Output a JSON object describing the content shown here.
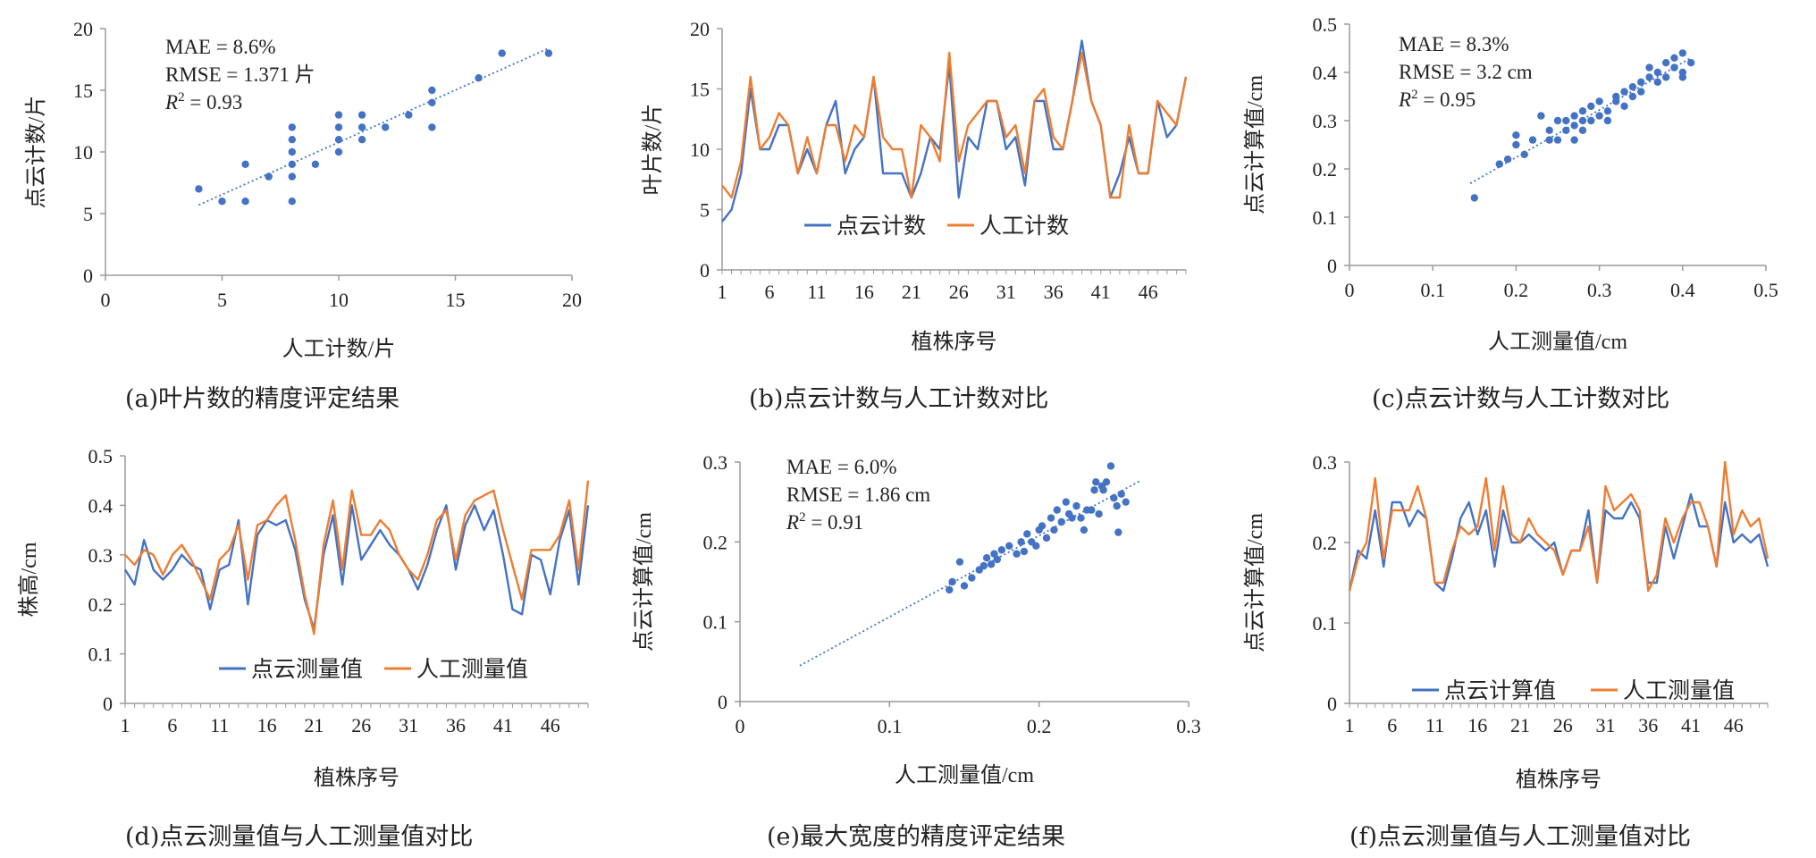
{
  "colors": {
    "blue": "#4472C4",
    "orange": "#ED7D31",
    "axis": "#888888",
    "text": "#222222"
  },
  "chart_data": [
    {
      "id": "a",
      "type": "scatter",
      "caption": "(a)叶片数的精度评定结果",
      "xlabel": "人工计数/片",
      "ylabel": "点云计数/片",
      "xlim": [
        0,
        20
      ],
      "ylim": [
        0,
        20
      ],
      "xticks": [
        0,
        5,
        10,
        15,
        20
      ],
      "yticks": [
        0,
        5,
        10,
        15,
        20
      ],
      "stats": [
        {
          "label": "MAE",
          "value": "8.6%"
        },
        {
          "label": "RMSE",
          "value": "1.371 片"
        },
        {
          "label": "R2",
          "value": "0.93"
        }
      ],
      "points": [
        [
          4,
          7
        ],
        [
          5,
          6
        ],
        [
          6,
          6
        ],
        [
          6,
          9
        ],
        [
          7,
          8
        ],
        [
          8,
          6
        ],
        [
          8,
          8
        ],
        [
          8,
          9
        ],
        [
          8,
          10
        ],
        [
          8,
          11
        ],
        [
          8,
          12
        ],
        [
          9,
          9
        ],
        [
          10,
          10
        ],
        [
          10,
          11
        ],
        [
          10,
          12
        ],
        [
          10,
          13
        ],
        [
          11,
          11
        ],
        [
          11,
          12
        ],
        [
          11,
          13
        ],
        [
          12,
          12
        ],
        [
          13,
          13
        ],
        [
          14,
          12
        ],
        [
          14,
          14
        ],
        [
          14,
          15
        ],
        [
          16,
          16
        ],
        [
          17,
          18
        ],
        [
          19,
          18
        ]
      ],
      "trendline": [
        [
          4,
          5.7
        ],
        [
          19,
          18.4
        ]
      ]
    },
    {
      "id": "b",
      "type": "line",
      "caption": "(b)点云计数与人工计数对比",
      "xlabel": "植株序号",
      "ylabel": "叶片数/片",
      "ylim": [
        0,
        20
      ],
      "yticks": [
        0,
        5,
        10,
        15,
        20
      ],
      "x_tick_labels": [
        "1",
        "6",
        "11",
        "16",
        "21",
        "26",
        "31",
        "36",
        "41",
        "46"
      ],
      "x_count": 50,
      "series": [
        {
          "name": "点云计数",
          "color": "#4472C4",
          "values": [
            4,
            5,
            8,
            15,
            10,
            10,
            12,
            12,
            8,
            10,
            8,
            12,
            14,
            8,
            10,
            11,
            16,
            8,
            8,
            8,
            6,
            8,
            11,
            10,
            17,
            6,
            11,
            10,
            14,
            14,
            10,
            11,
            7,
            14,
            14,
            10,
            10,
            14,
            19,
            14,
            12,
            6,
            8,
            11,
            8,
            8,
            14,
            11,
            12,
            16
          ]
        },
        {
          "name": "人工计数",
          "color": "#ED7D31",
          "values": [
            7,
            6,
            9,
            16,
            10,
            11,
            13,
            12,
            8,
            11,
            8,
            12,
            12,
            9,
            12,
            11,
            16,
            11,
            10,
            10,
            6,
            12,
            11,
            9,
            18,
            9,
            12,
            13,
            14,
            14,
            11,
            12,
            8,
            14,
            15,
            11,
            10,
            14,
            18,
            14,
            12,
            6,
            6,
            12,
            8,
            8,
            14,
            13,
            12,
            16
          ]
        }
      ]
    },
    {
      "id": "c",
      "type": "scatter",
      "caption": "(c)点云计数与人工计数对比",
      "xlabel": "人工测量值/cm",
      "ylabel": "点云计算值/cm",
      "xlim": [
        0,
        0.5
      ],
      "ylim": [
        0,
        0.5
      ],
      "xticks": [
        "0",
        "0.1",
        "0.2",
        "0.3",
        "0.4",
        "0.5"
      ],
      "yticks": [
        "0",
        "0.1",
        "0.2",
        "0.3",
        "0.4",
        "0.5"
      ],
      "stats": [
        {
          "label": "MAE",
          "value": "8.3%"
        },
        {
          "label": "RMSE",
          "value": "3.2 cm"
        },
        {
          "label": "R2",
          "value": "0.95"
        }
      ],
      "points": [
        [
          0.15,
          0.14
        ],
        [
          0.18,
          0.21
        ],
        [
          0.19,
          0.22
        ],
        [
          0.2,
          0.27
        ],
        [
          0.2,
          0.25
        ],
        [
          0.21,
          0.23
        ],
        [
          0.22,
          0.26
        ],
        [
          0.23,
          0.31
        ],
        [
          0.24,
          0.26
        ],
        [
          0.24,
          0.28
        ],
        [
          0.25,
          0.26
        ],
        [
          0.25,
          0.3
        ],
        [
          0.26,
          0.28
        ],
        [
          0.26,
          0.3
        ],
        [
          0.27,
          0.29
        ],
        [
          0.27,
          0.31
        ],
        [
          0.27,
          0.26
        ],
        [
          0.28,
          0.3
        ],
        [
          0.28,
          0.28
        ],
        [
          0.28,
          0.32
        ],
        [
          0.29,
          0.3
        ],
        [
          0.29,
          0.33
        ],
        [
          0.3,
          0.31
        ],
        [
          0.3,
          0.34
        ],
        [
          0.31,
          0.3
        ],
        [
          0.31,
          0.32
        ],
        [
          0.32,
          0.34
        ],
        [
          0.32,
          0.35
        ],
        [
          0.33,
          0.33
        ],
        [
          0.33,
          0.36
        ],
        [
          0.34,
          0.35
        ],
        [
          0.34,
          0.37
        ],
        [
          0.35,
          0.38
        ],
        [
          0.35,
          0.36
        ],
        [
          0.36,
          0.39
        ],
        [
          0.36,
          0.41
        ],
        [
          0.37,
          0.4
        ],
        [
          0.37,
          0.38
        ],
        [
          0.38,
          0.39
        ],
        [
          0.38,
          0.42
        ],
        [
          0.39,
          0.41
        ],
        [
          0.39,
          0.43
        ],
        [
          0.4,
          0.4
        ],
        [
          0.4,
          0.44
        ],
        [
          0.41,
          0.42
        ],
        [
          0.4,
          0.39
        ]
      ],
      "trendline": [
        [
          0.145,
          0.17
        ],
        [
          0.41,
          0.43
        ]
      ]
    },
    {
      "id": "d",
      "type": "line",
      "caption": "(d)点云测量值与人工测量值对比",
      "xlabel": "植株序号",
      "ylabel": "株高/cm",
      "ylim": [
        0,
        0.5
      ],
      "yticks": [
        "0",
        "0.1",
        "0.2",
        "0.3",
        "0.4",
        "0.5"
      ],
      "x_tick_labels": [
        "1",
        "6",
        "11",
        "16",
        "21",
        "26",
        "31",
        "36",
        "41",
        "46"
      ],
      "x_count": 50,
      "series": [
        {
          "name": "点云测量值",
          "color": "#4472C4",
          "values": [
            0.27,
            0.24,
            0.33,
            0.27,
            0.25,
            0.27,
            0.3,
            0.28,
            0.27,
            0.19,
            0.27,
            0.28,
            0.37,
            0.2,
            0.34,
            0.37,
            0.36,
            0.37,
            0.31,
            0.21,
            0.15,
            0.3,
            0.38,
            0.24,
            0.4,
            0.29,
            0.32,
            0.35,
            0.32,
            0.3,
            0.27,
            0.23,
            0.28,
            0.35,
            0.4,
            0.27,
            0.36,
            0.4,
            0.35,
            0.39,
            0.3,
            0.19,
            0.18,
            0.3,
            0.29,
            0.22,
            0.33,
            0.39,
            0.24,
            0.4
          ]
        },
        {
          "name": "人工测量值",
          "color": "#ED7D31",
          "values": [
            0.3,
            0.28,
            0.31,
            0.3,
            0.26,
            0.3,
            0.32,
            0.29,
            0.25,
            0.21,
            0.29,
            0.31,
            0.36,
            0.25,
            0.36,
            0.37,
            0.4,
            0.42,
            0.33,
            0.22,
            0.14,
            0.32,
            0.41,
            0.27,
            0.43,
            0.34,
            0.34,
            0.37,
            0.35,
            0.3,
            0.27,
            0.25,
            0.3,
            0.37,
            0.39,
            0.29,
            0.38,
            0.41,
            0.42,
            0.43,
            0.35,
            0.28,
            0.21,
            0.31,
            0.31,
            0.31,
            0.34,
            0.41,
            0.27,
            0.45
          ]
        }
      ]
    },
    {
      "id": "e",
      "type": "scatter",
      "caption": "(e)最大宽度的精度评定结果",
      "xlabel": "人工测量值/cm",
      "ylabel": "点云计算值/cm",
      "xlim": [
        0,
        0.3
      ],
      "ylim": [
        0,
        0.3
      ],
      "xticks": [
        "0",
        "0.1",
        "0.2",
        "0.3"
      ],
      "yticks": [
        "0",
        "0.1",
        "0.2",
        "0.3"
      ],
      "stats": [
        {
          "label": "MAE",
          "value": "6.0%"
        },
        {
          "label": "RMSE",
          "value": "1.86 cm"
        },
        {
          "label": "R2",
          "value": "0.91"
        }
      ],
      "points": [
        [
          0.14,
          0.14
        ],
        [
          0.142,
          0.15
        ],
        [
          0.147,
          0.175
        ],
        [
          0.15,
          0.145
        ],
        [
          0.155,
          0.155
        ],
        [
          0.16,
          0.165
        ],
        [
          0.163,
          0.17
        ],
        [
          0.165,
          0.18
        ],
        [
          0.168,
          0.172
        ],
        [
          0.17,
          0.185
        ],
        [
          0.172,
          0.178
        ],
        [
          0.175,
          0.19
        ],
        [
          0.18,
          0.195
        ],
        [
          0.185,
          0.185
        ],
        [
          0.188,
          0.2
        ],
        [
          0.19,
          0.188
        ],
        [
          0.192,
          0.21
        ],
        [
          0.195,
          0.2
        ],
        [
          0.198,
          0.195
        ],
        [
          0.2,
          0.215
        ],
        [
          0.202,
          0.22
        ],
        [
          0.205,
          0.205
        ],
        [
          0.208,
          0.23
        ],
        [
          0.21,
          0.215
        ],
        [
          0.212,
          0.24
        ],
        [
          0.215,
          0.225
        ],
        [
          0.218,
          0.25
        ],
        [
          0.22,
          0.235
        ],
        [
          0.222,
          0.23
        ],
        [
          0.225,
          0.245
        ],
        [
          0.228,
          0.23
        ],
        [
          0.23,
          0.215
        ],
        [
          0.232,
          0.24
        ],
        [
          0.235,
          0.24
        ],
        [
          0.237,
          0.265
        ],
        [
          0.238,
          0.275
        ],
        [
          0.24,
          0.235
        ],
        [
          0.242,
          0.27
        ],
        [
          0.243,
          0.265
        ],
        [
          0.245,
          0.275
        ],
        [
          0.248,
          0.295
        ],
        [
          0.25,
          0.255
        ],
        [
          0.252,
          0.245
        ],
        [
          0.253,
          0.212
        ],
        [
          0.255,
          0.26
        ],
        [
          0.258,
          0.25
        ]
      ],
      "trendline": [
        [
          0.04,
          0.045
        ],
        [
          0.268,
          0.277
        ]
      ]
    },
    {
      "id": "f",
      "type": "line",
      "caption": "(f)点云测量值与人工测量值对比",
      "xlabel": "植株序号",
      "ylabel": "点云计算值/cm",
      "ylim": [
        0,
        0.3
      ],
      "yticks": [
        "0",
        "0.1",
        "0.2",
        "0.3"
      ],
      "x_tick_labels": [
        "1",
        "6",
        "11",
        "16",
        "21",
        "26",
        "31",
        "36",
        "41",
        "46"
      ],
      "x_count": 50,
      "series": [
        {
          "name": "点云计算值",
          "color": "#4472C4",
          "values": [
            0.14,
            0.19,
            0.18,
            0.24,
            0.17,
            0.25,
            0.25,
            0.22,
            0.24,
            0.23,
            0.15,
            0.14,
            0.18,
            0.23,
            0.25,
            0.21,
            0.24,
            0.17,
            0.24,
            0.2,
            0.2,
            0.21,
            0.2,
            0.19,
            0.2,
            0.16,
            0.19,
            0.19,
            0.24,
            0.15,
            0.24,
            0.23,
            0.23,
            0.25,
            0.23,
            0.15,
            0.15,
            0.22,
            0.18,
            0.22,
            0.26,
            0.22,
            0.22,
            0.17,
            0.25,
            0.2,
            0.21,
            0.2,
            0.21,
            0.17
          ]
        },
        {
          "name": "人工测量值",
          "color": "#ED7D31",
          "values": [
            0.14,
            0.18,
            0.2,
            0.28,
            0.18,
            0.24,
            0.24,
            0.24,
            0.27,
            0.23,
            0.15,
            0.15,
            0.19,
            0.22,
            0.21,
            0.22,
            0.28,
            0.19,
            0.27,
            0.21,
            0.2,
            0.23,
            0.21,
            0.2,
            0.19,
            0.16,
            0.19,
            0.19,
            0.22,
            0.15,
            0.27,
            0.24,
            0.25,
            0.26,
            0.24,
            0.14,
            0.16,
            0.23,
            0.2,
            0.23,
            0.25,
            0.25,
            0.22,
            0.17,
            0.3,
            0.21,
            0.24,
            0.22,
            0.23,
            0.18
          ]
        }
      ]
    }
  ]
}
